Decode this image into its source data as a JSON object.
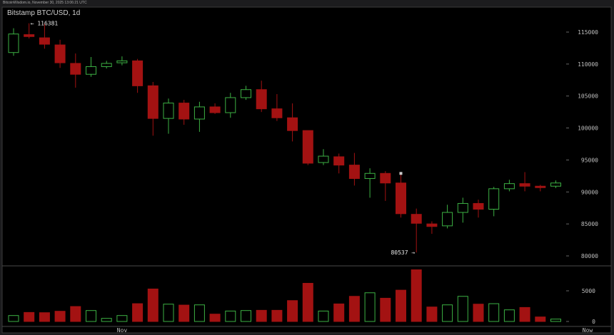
{
  "header": {
    "text": "BitcoinWisdom.io, November 30, 2025 13:06:21 UTC"
  },
  "chart_data": {
    "type": "candlestick",
    "title": "Bitstamp BTC/USD, 1d",
    "x_tick_labels": [
      "Nov",
      "Now"
    ],
    "price_ticks": [
      80000,
      85000,
      90000,
      95000,
      100000,
      105000,
      110000,
      115000
    ],
    "price_range": [
      78500,
      117000
    ],
    "volume_ticks": [
      0,
      5000
    ],
    "volume_range": [
      0,
      9000
    ],
    "annotations": {
      "high_label": "← 116381",
      "low_label": "80537 →"
    },
    "colors": {
      "up": "#3cb043",
      "down": "#a31212",
      "background": "#000000"
    },
    "candles": [
      {
        "o": 111800,
        "h": 115600,
        "l": 111300,
        "c": 114700,
        "v": 967
      },
      {
        "o": 114600,
        "h": 116381,
        "l": 114000,
        "c": 114300,
        "v": 1469
      },
      {
        "o": 114100,
        "h": 116300,
        "l": 112400,
        "c": 113100,
        "v": 1431
      },
      {
        "o": 112990,
        "h": 113800,
        "l": 109400,
        "c": 110200,
        "v": 1663
      },
      {
        "o": 110100,
        "h": 111650,
        "l": 106300,
        "c": 108400,
        "v": 2436
      },
      {
        "o": 108400,
        "h": 111100,
        "l": 108000,
        "c": 109600,
        "v": 1779
      },
      {
        "o": 109600,
        "h": 110500,
        "l": 109300,
        "c": 110100,
        "v": 503
      },
      {
        "o": 110200,
        "h": 111200,
        "l": 109800,
        "c": 110500,
        "v": 967
      },
      {
        "o": 110500,
        "h": 110800,
        "l": 105500,
        "c": 106600,
        "v": 2900
      },
      {
        "o": 106600,
        "h": 107200,
        "l": 98800,
        "c": 101500,
        "v": 5297
      },
      {
        "o": 101500,
        "h": 104600,
        "l": 99100,
        "c": 103900,
        "v": 2823
      },
      {
        "o": 103900,
        "h": 104400,
        "l": 100500,
        "c": 101400,
        "v": 2668
      },
      {
        "o": 101400,
        "h": 104100,
        "l": 99400,
        "c": 103300,
        "v": 2707
      },
      {
        "o": 103300,
        "h": 103850,
        "l": 102200,
        "c": 102400,
        "v": 1199
      },
      {
        "o": 102400,
        "h": 105500,
        "l": 101600,
        "c": 104750,
        "v": 1701
      },
      {
        "o": 104750,
        "h": 106600,
        "l": 104400,
        "c": 106000,
        "v": 1779
      },
      {
        "o": 106000,
        "h": 107400,
        "l": 102500,
        "c": 103000,
        "v": 1817
      },
      {
        "o": 103000,
        "h": 105300,
        "l": 101100,
        "c": 101600,
        "v": 1817
      },
      {
        "o": 101600,
        "h": 103850,
        "l": 97900,
        "c": 99600,
        "v": 3403
      },
      {
        "o": 99600,
        "h": 99600,
        "l": 94200,
        "c": 94500,
        "v": 6225
      },
      {
        "o": 94600,
        "h": 96700,
        "l": 94200,
        "c": 95600,
        "v": 1701
      },
      {
        "o": 95500,
        "h": 96000,
        "l": 92900,
        "c": 94200,
        "v": 2861
      },
      {
        "o": 94200,
        "h": 96100,
        "l": 91000,
        "c": 92100,
        "v": 4099
      },
      {
        "o": 92100,
        "h": 93700,
        "l": 89100,
        "c": 92900,
        "v": 4679
      },
      {
        "o": 92900,
        "h": 93250,
        "l": 88600,
        "c": 91400,
        "v": 3789
      },
      {
        "o": 91400,
        "h": 92900,
        "l": 86000,
        "c": 86600,
        "v": 5104
      },
      {
        "o": 86500,
        "h": 87400,
        "l": 80537,
        "c": 85100,
        "v": 8429
      },
      {
        "o": 85000,
        "h": 85400,
        "l": 83450,
        "c": 84600,
        "v": 2359
      },
      {
        "o": 84700,
        "h": 88000,
        "l": 84300,
        "c": 86800,
        "v": 2707
      },
      {
        "o": 86800,
        "h": 89100,
        "l": 85200,
        "c": 88200,
        "v": 4099
      },
      {
        "o": 88200,
        "h": 88800,
        "l": 86000,
        "c": 87300,
        "v": 2823
      },
      {
        "o": 87300,
        "h": 90800,
        "l": 86200,
        "c": 90500,
        "v": 2900
      },
      {
        "o": 90500,
        "h": 91900,
        "l": 90100,
        "c": 91300,
        "v": 1895
      },
      {
        "o": 91300,
        "h": 93100,
        "l": 90100,
        "c": 90900,
        "v": 2281
      },
      {
        "o": 90900,
        "h": 91100,
        "l": 90100,
        "c": 90800,
        "v": 735
      },
      {
        "o": 90900,
        "h": 91800,
        "l": 90600,
        "c": 91400,
        "v": 387
      }
    ]
  }
}
